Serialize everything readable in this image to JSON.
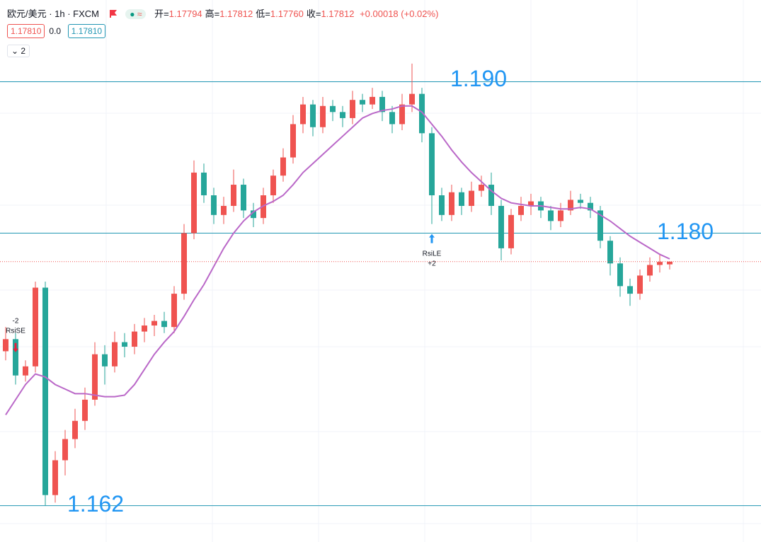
{
  "header": {
    "symbol": "欧元/美元 · 1h · FXCM",
    "status": "≈",
    "ohlc": [
      {
        "label": "开=",
        "value": "1.17794"
      },
      {
        "label": "高=",
        "value": "1.17812"
      },
      {
        "label": "低=",
        "value": "1.17760"
      },
      {
        "label": "收=",
        "value": "1.17812"
      }
    ],
    "change": "+0.00018",
    "change_pct": "(+0.02%)",
    "quote": [
      "1.17810",
      "0.0",
      "1.17810"
    ],
    "indicator_count": "2"
  },
  "chart_data": {
    "type": "candlestick",
    "ylim": [
      1.1596,
      1.1954
    ],
    "up_color": "#ef5350",
    "down_color": "#26a69a",
    "open": [
      1.1722,
      1.173,
      1.1706,
      1.1712,
      1.1764,
      1.1627,
      1.165,
      1.1664,
      1.1676,
      1.169,
      1.172,
      1.1712,
      1.1728,
      1.1725,
      1.1735,
      1.1739,
      1.1742,
      1.1738,
      1.176,
      1.18,
      1.184,
      1.1825,
      1.1812,
      1.1818,
      1.1832,
      1.1815,
      1.181,
      1.1825,
      1.1838,
      1.185,
      1.1872,
      1.1885,
      1.187,
      1.1884,
      1.188,
      1.1876,
      1.1888,
      1.1885,
      1.189,
      1.188,
      1.1872,
      1.1885,
      1.1892,
      1.1866,
      1.1825,
      1.1812,
      1.1827,
      1.1818,
      1.1828,
      1.1832,
      1.1818,
      1.179,
      1.1812,
      1.1818,
      1.1821,
      1.1815,
      1.1808,
      1.1815,
      1.1822,
      1.182,
      1.1815,
      1.1795,
      1.178,
      1.1765,
      1.176,
      1.1772,
      1.1779,
      1.17794
    ],
    "high": [
      1.1738,
      1.1734,
      1.1716,
      1.1768,
      1.1768,
      1.1656,
      1.167,
      1.1684,
      1.1698,
      1.1728,
      1.1726,
      1.1735,
      1.1734,
      1.174,
      1.1744,
      1.1746,
      1.1748,
      1.1765,
      1.1806,
      1.1848,
      1.1846,
      1.183,
      1.1824,
      1.1842,
      1.1836,
      1.182,
      1.183,
      1.1842,
      1.1856,
      1.1878,
      1.189,
      1.1888,
      1.189,
      1.1888,
      1.1884,
      1.1894,
      1.1892,
      1.1896,
      1.1894,
      1.1884,
      1.1892,
      1.1912,
      1.1896,
      1.187,
      1.183,
      1.1832,
      1.183,
      1.1834,
      1.1838,
      1.184,
      1.1822,
      1.1816,
      1.1824,
      1.1826,
      1.1824,
      1.1818,
      1.182,
      1.1828,
      1.1826,
      1.1824,
      1.1818,
      1.1798,
      1.1784,
      1.177,
      1.1776,
      1.1784,
      1.1786,
      1.17812
    ],
    "low": [
      1.1716,
      1.17,
      1.1702,
      1.1708,
      1.162,
      1.1622,
      1.164,
      1.1658,
      1.167,
      1.1686,
      1.17,
      1.1708,
      1.1718,
      1.172,
      1.1728,
      1.1732,
      1.1734,
      1.1734,
      1.1756,
      1.1796,
      1.182,
      1.1806,
      1.1806,
      1.1814,
      1.181,
      1.1804,
      1.1806,
      1.182,
      1.1834,
      1.1846,
      1.1866,
      1.1864,
      1.1866,
      1.1874,
      1.187,
      1.1872,
      1.188,
      1.1882,
      1.1874,
      1.1866,
      1.1868,
      1.188,
      1.186,
      1.1806,
      1.1808,
      1.1808,
      1.1812,
      1.1814,
      1.1824,
      1.1812,
      1.1782,
      1.1786,
      1.1808,
      1.1812,
      1.181,
      1.1802,
      1.1804,
      1.1812,
      1.1816,
      1.181,
      1.179,
      1.1772,
      1.1758,
      1.1752,
      1.1756,
      1.1768,
      1.1774,
      1.1776
    ],
    "close": [
      1.173,
      1.1706,
      1.1712,
      1.1764,
      1.1627,
      1.165,
      1.1664,
      1.1676,
      1.169,
      1.172,
      1.1712,
      1.1728,
      1.1725,
      1.1735,
      1.1739,
      1.1742,
      1.1738,
      1.176,
      1.18,
      1.184,
      1.1825,
      1.1812,
      1.1818,
      1.1832,
      1.1815,
      1.181,
      1.1825,
      1.1838,
      1.185,
      1.1872,
      1.1885,
      1.187,
      1.1884,
      1.188,
      1.1876,
      1.1888,
      1.1885,
      1.189,
      1.188,
      1.1872,
      1.1885,
      1.1892,
      1.1866,
      1.1825,
      1.1812,
      1.1827,
      1.1818,
      1.1828,
      1.1832,
      1.1818,
      1.179,
      1.1812,
      1.1818,
      1.1821,
      1.1815,
      1.1808,
      1.1815,
      1.1822,
      1.182,
      1.1815,
      1.1795,
      1.178,
      1.1765,
      1.176,
      1.1772,
      1.1779,
      1.1781,
      1.17812
    ],
    "ma": {
      "color": "#ba68c8",
      "values": [
        1.168,
        1.169,
        1.17,
        1.1707,
        1.1705,
        1.17,
        1.1697,
        1.1694,
        1.1694,
        1.1693,
        1.1692,
        1.1692,
        1.1693,
        1.17,
        1.171,
        1.172,
        1.1728,
        1.1735,
        1.1745,
        1.1756,
        1.1766,
        1.1778,
        1.179,
        1.18,
        1.1808,
        1.1814,
        1.1818,
        1.1821,
        1.1825,
        1.1832,
        1.184,
        1.1846,
        1.1852,
        1.1858,
        1.1864,
        1.187,
        1.1876,
        1.1879,
        1.1881,
        1.1882,
        1.1884,
        1.1884,
        1.188,
        1.1872,
        1.1864,
        1.1855,
        1.1847,
        1.184,
        1.1834,
        1.1828,
        1.1823,
        1.182,
        1.1819,
        1.1818,
        1.1818,
        1.1817,
        1.1816,
        1.1816,
        1.1817,
        1.1816,
        1.1812,
        1.1808,
        1.1803,
        1.1798,
        1.1794,
        1.179,
        1.1786,
        1.1783
      ]
    },
    "levels": [
      {
        "value": 1.19,
        "label": "1.190"
      },
      {
        "value": 1.18,
        "label": "1.180"
      },
      {
        "value": 1.162,
        "label": "1.162"
      }
    ],
    "level_color": "#2196b3",
    "level_label_color": "#2196f3",
    "signals": [
      {
        "index": 1,
        "qty": "-2",
        "label": "RsiSE",
        "side": "sell",
        "color": "#e91e3c"
      },
      {
        "index": 43,
        "qty": "+2",
        "label": "RsiLE",
        "side": "buy",
        "color": "#2196f3"
      }
    ]
  }
}
